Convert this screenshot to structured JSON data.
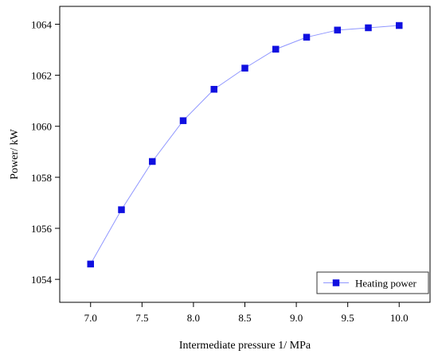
{
  "chart_data": {
    "type": "line",
    "title": "",
    "xlabel": "Intermediate pressure 1/ MPa",
    "ylabel": "Power/ kW",
    "xlim": [
      6.7,
      10.3
    ],
    "ylim": [
      1053.1,
      1064.7
    ],
    "x_ticks": [
      7.0,
      7.5,
      8.0,
      8.5,
      9.0,
      9.5,
      10.0
    ],
    "x_tick_labels": [
      "7.0",
      "7.5",
      "8.0",
      "8.5",
      "9.0",
      "9.5",
      "10.0"
    ],
    "y_ticks": [
      1054,
      1056,
      1058,
      1060,
      1062,
      1064
    ],
    "y_tick_labels": [
      "1054",
      "1056",
      "1058",
      "1060",
      "1062",
      "1064"
    ],
    "grid": false,
    "legend_position": "bottom-right",
    "series": [
      {
        "name": "Heating power",
        "color": "#1010e0",
        "line_color": "#8f96ff",
        "marker": "square",
        "x": [
          7.0,
          7.3,
          7.6,
          7.9,
          8.2,
          8.5,
          8.8,
          9.1,
          9.4,
          9.7,
          10.0
        ],
        "y": [
          1054.6,
          1056.73,
          1058.62,
          1060.22,
          1061.45,
          1062.28,
          1063.02,
          1063.49,
          1063.77,
          1063.86,
          1063.95
        ]
      }
    ]
  }
}
